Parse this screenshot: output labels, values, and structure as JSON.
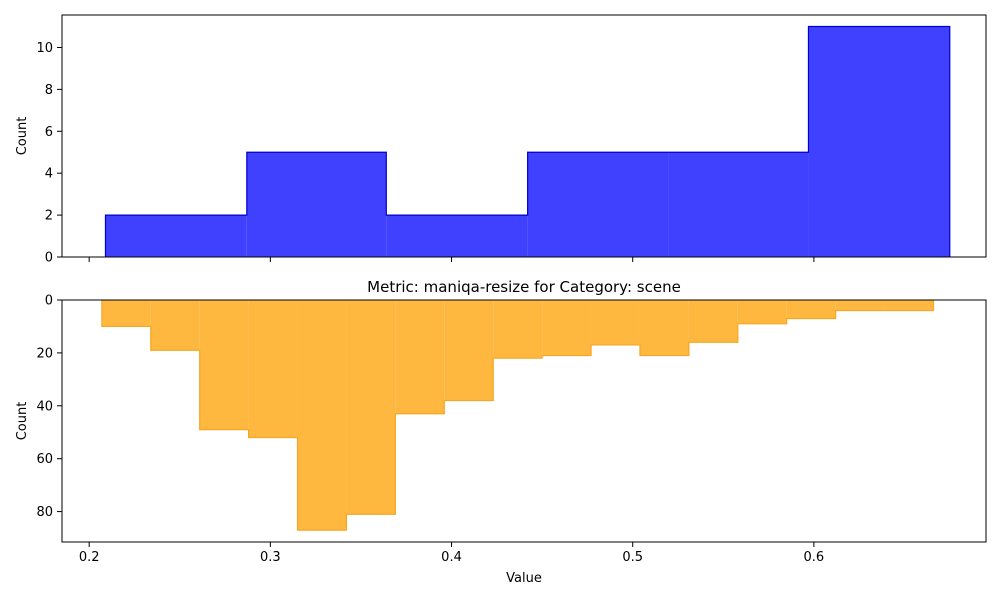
{
  "chart_data": [
    {
      "type": "histogram",
      "title": "",
      "xlabel": "",
      "ylabel": "Count",
      "xlim": [
        0.185,
        0.695
      ],
      "ylim": [
        0,
        11.55
      ],
      "inverted_y": false,
      "x_ticks": [
        0.2,
        0.3,
        0.4,
        0.5,
        0.6
      ],
      "x_tick_labels_shown": false,
      "y_ticks": [
        0,
        2,
        4,
        6,
        8,
        10
      ],
      "y_tick_labels": [
        "0",
        "2",
        "4",
        "6",
        "8",
        "10"
      ],
      "color": "#4040ff",
      "edge_color": "#0000cc",
      "series": [
        {
          "bin_edges": [
            0.209,
            0.287,
            0.364,
            0.442,
            0.52,
            0.597,
            0.675
          ],
          "counts": [
            2,
            5,
            2,
            5,
            5,
            11
          ]
        }
      ]
    },
    {
      "type": "histogram",
      "title": "Metric: maniqa-resize for Category: scene",
      "xlabel": "Value",
      "ylabel": "Count",
      "xlim": [
        0.185,
        0.695
      ],
      "ylim": [
        91.5,
        0
      ],
      "inverted_y": true,
      "x_ticks": [
        0.2,
        0.3,
        0.4,
        0.5,
        0.6
      ],
      "x_tick_labels": [
        "0.2",
        "0.3",
        "0.4",
        "0.5",
        "0.6"
      ],
      "y_ticks": [
        0,
        20,
        40,
        60,
        80
      ],
      "y_tick_labels": [
        "0",
        "20",
        "40",
        "60",
        "80"
      ],
      "color": "#ffb83f",
      "edge_color": "#f5a623",
      "series": [
        {
          "bin_edges": [
            0.207,
            0.234,
            0.261,
            0.288,
            0.315,
            0.342,
            0.369,
            0.396,
            0.423,
            0.45,
            0.477,
            0.504,
            0.531,
            0.558,
            0.585,
            0.612,
            0.639,
            0.666
          ],
          "counts": [
            10,
            19,
            49,
            52,
            87,
            81,
            43,
            38,
            22,
            21,
            17,
            21,
            16,
            9,
            7,
            4,
            4
          ]
        }
      ]
    }
  ]
}
